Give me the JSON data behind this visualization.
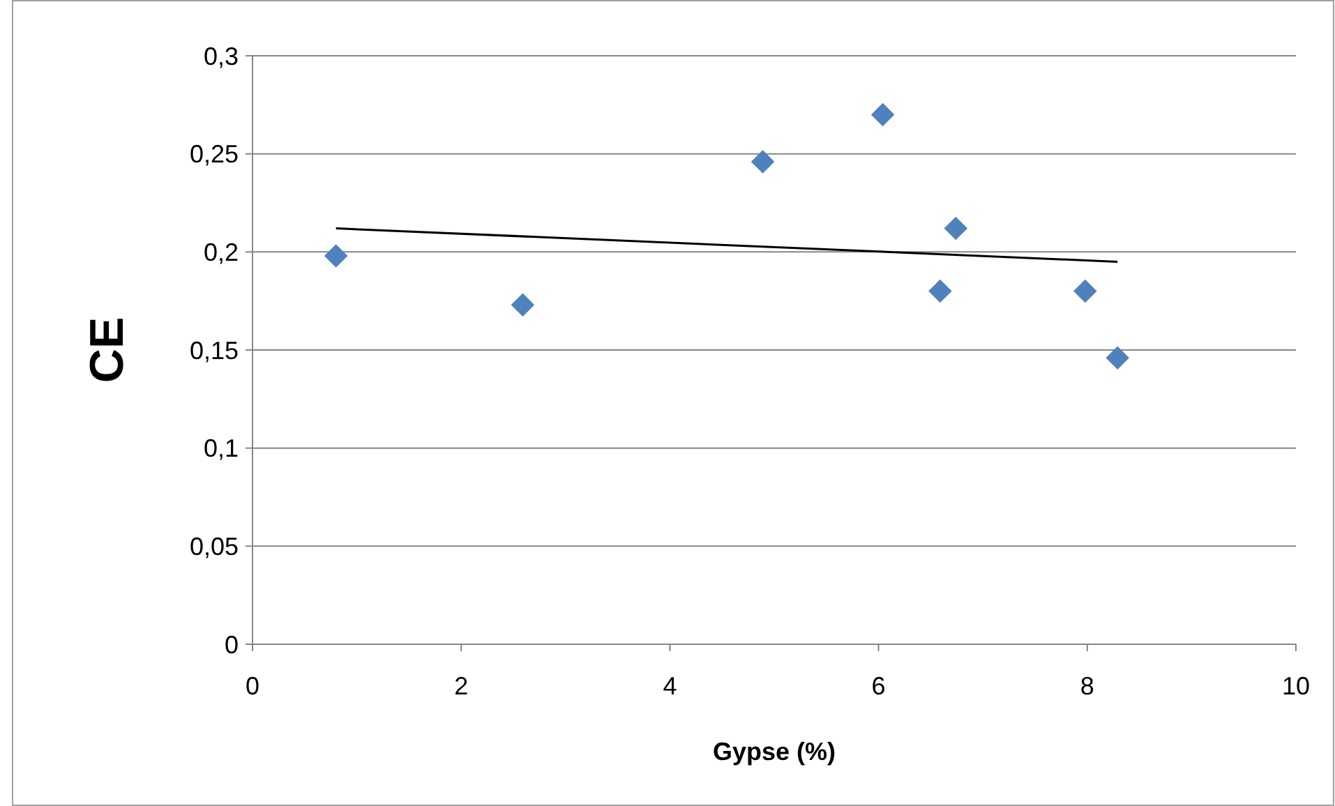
{
  "chart_data": {
    "type": "scatter",
    "xlabel": "Gypse (%)",
    "ylabel": "CE",
    "xlim": [
      0,
      10
    ],
    "xticks": [
      0,
      2,
      4,
      6,
      8,
      10
    ],
    "ylim": [
      0,
      0.3
    ],
    "yticks": [
      {
        "value": 0,
        "label": "0"
      },
      {
        "value": 0.05,
        "label": "0,05"
      },
      {
        "value": 0.1,
        "label": "0,1"
      },
      {
        "value": 0.15,
        "label": "0,15"
      },
      {
        "value": 0.2,
        "label": "0,2"
      },
      {
        "value": 0.25,
        "label": "0,25"
      },
      {
        "value": 0.3,
        "label": "0,3"
      }
    ],
    "grid": "y",
    "series": [
      {
        "color": "#4f81bd",
        "marker": "diamond",
        "x": [
          0.8,
          2.59,
          4.89,
          6.04,
          6.59,
          6.74,
          7.98,
          8.29
        ],
        "values": [
          0.198,
          0.173,
          0.246,
          0.27,
          0.18,
          0.212,
          0.18,
          0.146
        ]
      },
      {
        "type": "line",
        "color": "#000000",
        "marker": "none",
        "line_style": "solid",
        "x": [
          0.8,
          8.29
        ],
        "values": [
          0.212,
          0.195
        ]
      }
    ]
  }
}
